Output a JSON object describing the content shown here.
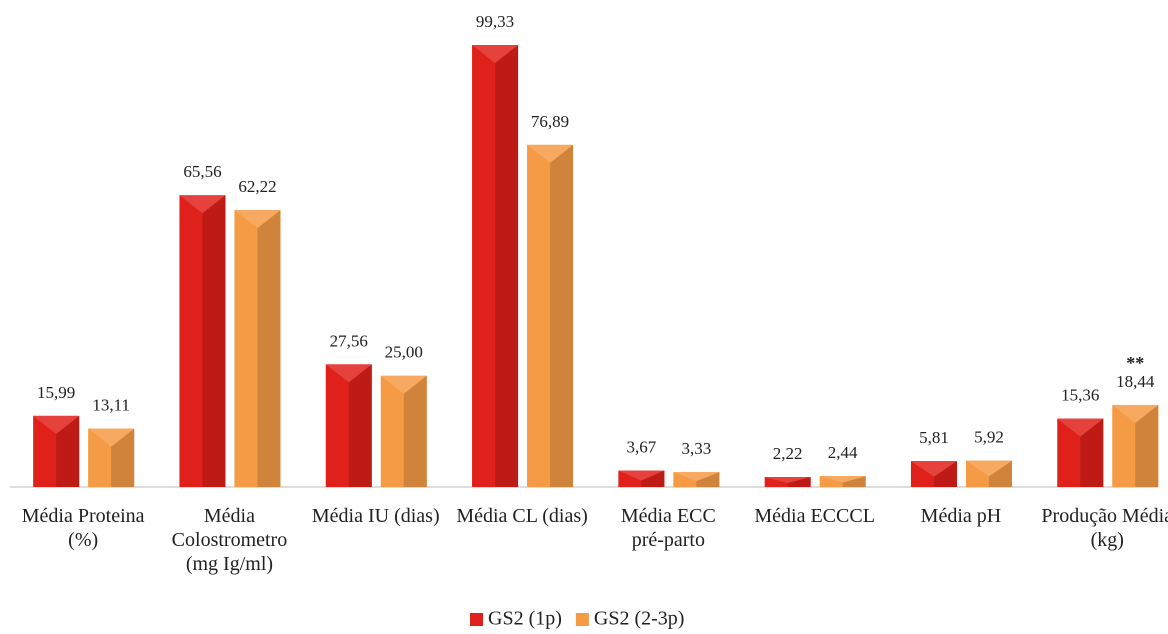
{
  "chart_data": {
    "type": "bar",
    "categories": [
      "Média Proteina (%)",
      "Média Colostrometro (mg Ig/ml)",
      "Média IU (dias)",
      "Média CL (dias)",
      "Média ECC pré-parto",
      "Média ECCCL",
      "Média pH",
      "Produção Média (kg)"
    ],
    "series": [
      {
        "name": "GS2 (1p)",
        "color": "#e0201b",
        "values": [
          15.99,
          65.56,
          27.56,
          99.33,
          3.67,
          2.22,
          5.81,
          15.36
        ],
        "value_labels": [
          "15,99",
          "65,56",
          "27,56",
          "99,33",
          "3,67",
          "2,22",
          "5,81",
          "15,36"
        ]
      },
      {
        "name": "GS2 (2-3p)",
        "color": "#f59a45",
        "values": [
          13.11,
          62.22,
          25.0,
          76.89,
          3.33,
          2.44,
          5.92,
          18.44
        ],
        "value_labels": [
          "13,11",
          "62,22",
          "25,00",
          "76,89",
          "3,33",
          "2,44",
          "5,92",
          "18,44"
        ]
      }
    ],
    "annotation": "**",
    "legend": "bottom"
  }
}
